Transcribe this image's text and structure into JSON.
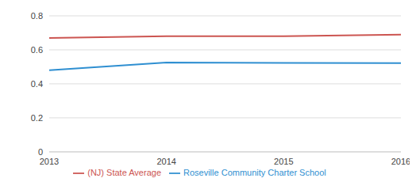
{
  "chart_data": {
    "type": "line",
    "categories": [
      "2013",
      "2014",
      "2015",
      "2016"
    ],
    "series": [
      {
        "name": "Roseville Community Charter School",
        "color": "#2f8fd1",
        "values": [
          0.48,
          0.525,
          0.523,
          0.522
        ]
      },
      {
        "name": "(NJ) State Average",
        "color": "#cc5551",
        "values": [
          0.67,
          0.68,
          0.68,
          0.69
        ]
      }
    ],
    "ylim": [
      0,
      0.8
    ],
    "yticks": [
      0,
      0.2,
      0.4,
      0.6,
      0.8
    ],
    "grid": true,
    "legend": "bottom"
  }
}
